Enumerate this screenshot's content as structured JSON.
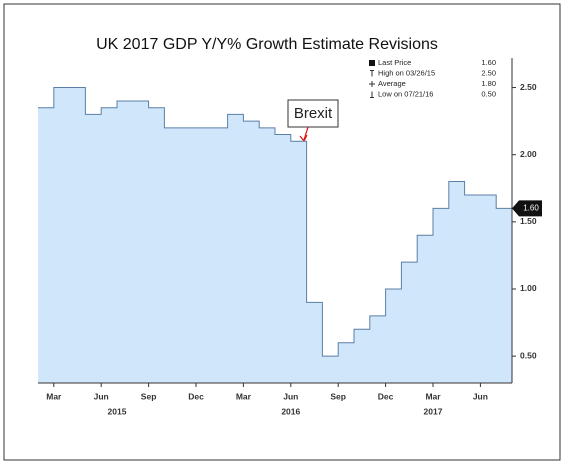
{
  "chart_data": {
    "type": "step-area",
    "title": "UK 2017 GDP Y/Y% Growth Estimate Revisions",
    "annotation": "Brexit",
    "x": [
      "2015-02",
      "2015-03",
      "2015-04",
      "2015-05",
      "2015-06",
      "2015-07",
      "2015-08",
      "2015-09",
      "2015-10",
      "2015-11",
      "2015-12",
      "2016-01",
      "2016-02",
      "2016-03",
      "2016-04",
      "2016-05",
      "2016-06",
      "2016-07",
      "2016-08",
      "2016-09",
      "2016-10",
      "2016-11",
      "2016-12",
      "2017-01",
      "2017-02",
      "2017-03",
      "2017-04",
      "2017-05",
      "2017-06",
      "2017-07"
    ],
    "values": [
      2.35,
      2.5,
      2.5,
      2.3,
      2.35,
      2.4,
      2.4,
      2.35,
      2.2,
      2.2,
      2.2,
      2.2,
      2.3,
      2.25,
      2.2,
      2.15,
      2.1,
      0.9,
      0.5,
      0.6,
      0.7,
      0.8,
      1.0,
      1.2,
      1.4,
      1.6,
      1.8,
      1.7,
      1.7,
      1.6
    ],
    "color": "#cfe6fb",
    "line_color": "#5b7fa6",
    "xlim": [
      "2015-02",
      "2017-08"
    ],
    "xticks": [
      {
        "value": "2015-03",
        "label": "Mar"
      },
      {
        "value": "2015-06",
        "label": "Jun"
      },
      {
        "value": "2015-09",
        "label": "Sep"
      },
      {
        "value": "2015-12",
        "label": "Dec"
      },
      {
        "value": "2016-03",
        "label": "Mar"
      },
      {
        "value": "2016-06",
        "label": "Jun"
      },
      {
        "value": "2016-09",
        "label": "Sep"
      },
      {
        "value": "2016-12",
        "label": "Dec"
      },
      {
        "value": "2017-03",
        "label": "Mar"
      },
      {
        "value": "2017-06",
        "label": "Jun"
      }
    ],
    "year_labels": [
      {
        "value": "2015-07",
        "label": "2015"
      },
      {
        "value": "2016-06",
        "label": "2016"
      },
      {
        "value": "2017-03",
        "label": "2017"
      }
    ],
    "ylim": [
      0.3,
      2.72
    ],
    "yticks": [
      {
        "value": 0.5,
        "label": "0.50"
      },
      {
        "value": 1.0,
        "label": "1.00"
      },
      {
        "value": 1.5,
        "label": "1.50"
      },
      {
        "value": 2.0,
        "label": "2.00"
      },
      {
        "value": 2.5,
        "label": "2.50"
      }
    ],
    "grid": false,
    "legend": [
      {
        "label": "Last Price",
        "value": 1.6,
        "value_label": "1.60"
      },
      {
        "label": "High on 03/26/15",
        "value": 2.5,
        "value_label": "2.50"
      },
      {
        "label": "Average",
        "value": 1.8,
        "value_label": "1.80"
      },
      {
        "label": "Low on 07/21/16",
        "value": 0.5,
        "value_label": "0.50"
      }
    ]
  }
}
